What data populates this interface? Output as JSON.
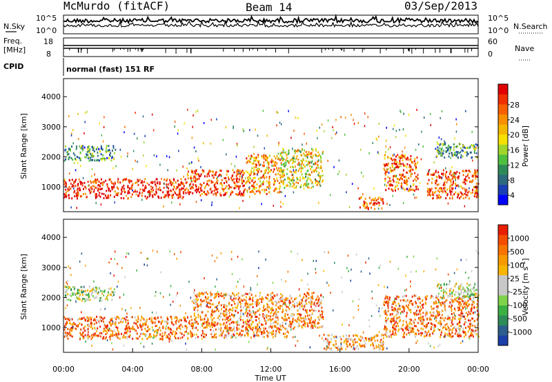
{
  "header": {
    "station": "McMurdo (fitACF)",
    "beam": "Beam 14",
    "date": "03/Sep/2013"
  },
  "top_panels": {
    "nsky_label": "N.Sky",
    "nsearch_label": "N.Search",
    "noise_ticks": [
      "10^5",
      "10^0"
    ],
    "freq_label_line1": "Freq.",
    "freq_label_line2": "[MHz]",
    "freq_ticks": [
      "18",
      "8"
    ],
    "nave_label": "Nave",
    "nave_ticks": [
      "60",
      "0"
    ],
    "cpid_label": "CPID",
    "cpid_text": "normal (fast) 151 RF"
  },
  "chart_data": [
    {
      "type": "heatmap",
      "name": "power",
      "ylabel": "Slant Range [km]",
      "xlabel": "",
      "ylim": [
        180,
        4600
      ],
      "yticks": [
        1000,
        2000,
        3000,
        4000
      ],
      "xlim": [
        0,
        24
      ],
      "colorbar_label": "Power [dB]",
      "colorbar_ticks": [
        "28",
        "24",
        "20",
        "16",
        "12",
        "8",
        "4"
      ],
      "colorbar_colors": [
        "#0000ff",
        "#1a3fb5",
        "#2d6a7e",
        "#2e8b57",
        "#4fbf3f",
        "#9fd52a",
        "#f5e000",
        "#f5b800",
        "#f78f00",
        "#f76000",
        "#f03000",
        "#e00000"
      ],
      "scatter_regions": [
        {
          "t0": 0.0,
          "t1": 7.0,
          "r0": 650,
          "r1": 1300,
          "level": 0.92
        },
        {
          "t0": 7.0,
          "t1": 10.5,
          "r0": 750,
          "r1": 1600,
          "level": 0.85
        },
        {
          "t0": 10.5,
          "t1": 12.5,
          "r0": 800,
          "r1": 2100,
          "level": 0.7
        },
        {
          "t0": 12.5,
          "t1": 15.0,
          "r0": 1000,
          "r1": 2300,
          "level": 0.55
        },
        {
          "t0": 17.0,
          "t1": 18.5,
          "r0": 300,
          "r1": 700,
          "level": 0.85
        },
        {
          "t0": 18.5,
          "t1": 20.5,
          "r0": 900,
          "r1": 2100,
          "level": 0.8
        },
        {
          "t0": 21.0,
          "t1": 24.0,
          "r0": 650,
          "r1": 1600,
          "level": 0.85
        },
        {
          "t0": 0.0,
          "t1": 3.0,
          "r0": 1900,
          "r1": 2400,
          "level": 0.3
        },
        {
          "t0": 21.5,
          "t1": 24.0,
          "r0": 2000,
          "r1": 2500,
          "level": 0.35
        }
      ]
    },
    {
      "type": "heatmap",
      "name": "velocity",
      "ylabel": "Slant Range [km]",
      "xlabel": "Time UT",
      "ylim": [
        180,
        4600
      ],
      "yticks": [
        1000,
        2000,
        3000,
        4000
      ],
      "xlim": [
        0,
        24
      ],
      "xticks": [
        "00:00",
        "04:00",
        "08:00",
        "12:00",
        "16:00",
        "20:00",
        "00:00"
      ],
      "colorbar_label": "Velocity [m s",
      "colorbar_label_sup": "-1",
      "colorbar_ticks": [
        "1000",
        "500",
        "100",
        "25",
        "-25",
        "-100",
        "-500",
        "-1000"
      ],
      "colorbar_colors": [
        "#1b3fa8",
        "#2e5e8c",
        "#2e8b57",
        "#3cb043",
        "#7fd34a",
        "#c8c8c8",
        "#c8c8c8",
        "#f7b500",
        "#f79a00",
        "#f77400",
        "#f34d00",
        "#e81e00"
      ],
      "scatter_regions": [
        {
          "t0": 0.0,
          "t1": 7.5,
          "r0": 650,
          "r1": 1400,
          "level": 0.8
        },
        {
          "t0": 7.5,
          "t1": 13.0,
          "r0": 700,
          "r1": 2200,
          "level": 0.75
        },
        {
          "t0": 13.0,
          "t1": 15.0,
          "r0": 1000,
          "r1": 2200,
          "level": 0.75
        },
        {
          "t0": 15.0,
          "t1": 18.5,
          "r0": 300,
          "r1": 800,
          "level": 0.7
        },
        {
          "t0": 18.5,
          "t1": 24.0,
          "r0": 700,
          "r1": 2100,
          "level": 0.78
        },
        {
          "t0": 0.0,
          "t1": 3.0,
          "r0": 1900,
          "r1": 2400,
          "level": 0.45
        },
        {
          "t0": 21.5,
          "t1": 24.0,
          "r0": 2000,
          "r1": 2500,
          "level": 0.45
        }
      ]
    }
  ]
}
